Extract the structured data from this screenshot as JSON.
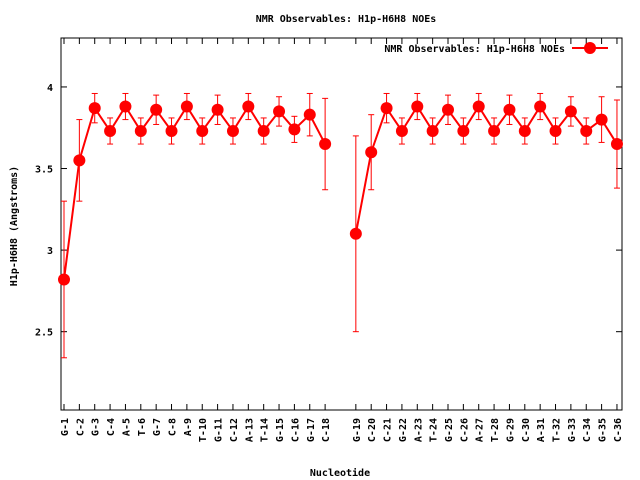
{
  "chart_data": {
    "type": "line",
    "title": "NMR Observables: H1p-H6H8 NOEs",
    "xlabel": "Nucleotide",
    "ylabel": "H1p-H6H8 (Angstroms)",
    "ylim": [
      2.02,
      4.3
    ],
    "yticks": [
      "2.5",
      "3",
      "3.5",
      "4"
    ],
    "ytick_values": [
      2.5,
      3,
      3.5,
      4
    ],
    "grid": false,
    "legend_position": "top-right",
    "series_color": "#ff0000",
    "series": [
      {
        "name": "NMR Observables: H1p-H6H8 NOEs",
        "segments": [
          {
            "categories": [
              "G-1",
              "C-2",
              "G-3",
              "C-4",
              "A-5",
              "T-6",
              "G-7",
              "C-8",
              "A-9",
              "T-10",
              "G-11",
              "C-12",
              "A-13",
              "T-14",
              "G-15",
              "C-16",
              "G-17",
              "C-18"
            ],
            "values": [
              2.82,
              3.55,
              3.87,
              3.73,
              3.88,
              3.73,
              3.86,
              3.73,
              3.88,
              3.73,
              3.86,
              3.73,
              3.88,
              3.73,
              3.85,
              3.74,
              3.83,
              3.65
            ],
            "errors": [
              0.48,
              0.25,
              0.09,
              0.08,
              0.08,
              0.08,
              0.09,
              0.08,
              0.08,
              0.08,
              0.09,
              0.08,
              0.08,
              0.08,
              0.09,
              0.08,
              0.13,
              0.28
            ]
          },
          {
            "categories": [
              "G-19",
              "C-20",
              "C-21",
              "G-22",
              "A-23",
              "T-24",
              "G-25",
              "C-26",
              "A-27",
              "T-28",
              "G-29",
              "C-30",
              "A-31",
              "T-32",
              "G-33",
              "C-34",
              "G-35",
              "C-36"
            ],
            "values": [
              3.1,
              3.6,
              3.87,
              3.73,
              3.88,
              3.73,
              3.86,
              3.73,
              3.88,
              3.73,
              3.86,
              3.73,
              3.88,
              3.73,
              3.85,
              3.73,
              3.8,
              3.65
            ],
            "errors": [
              0.6,
              0.23,
              0.09,
              0.08,
              0.08,
              0.08,
              0.09,
              0.08,
              0.08,
              0.08,
              0.09,
              0.08,
              0.08,
              0.08,
              0.09,
              0.08,
              0.14,
              0.27
            ]
          }
        ]
      }
    ]
  }
}
